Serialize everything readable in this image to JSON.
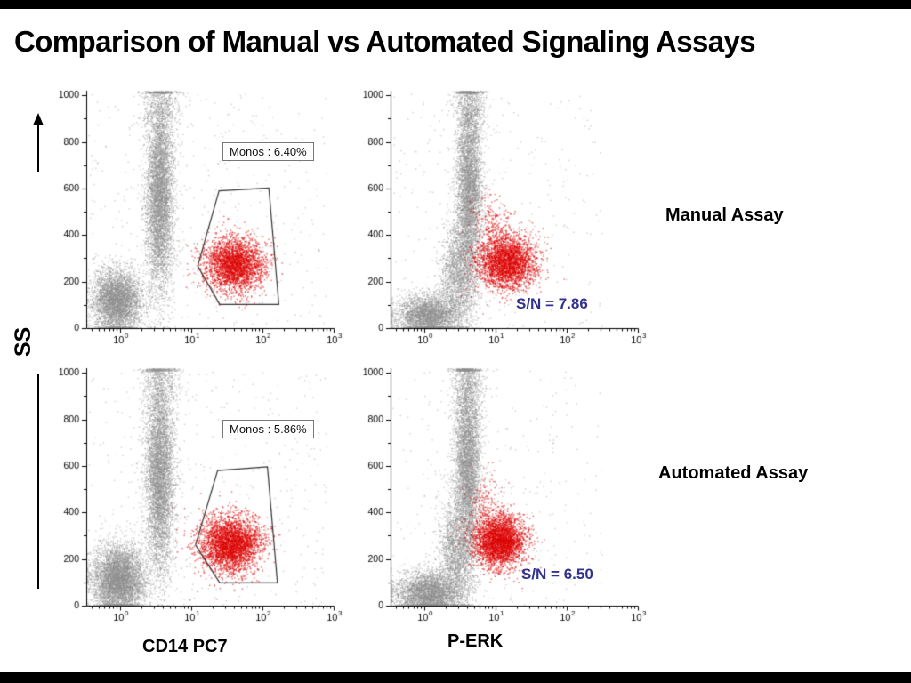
{
  "page": {
    "title": "Comparison of Manual vs Automated Signaling Assays",
    "background": "#ffffff",
    "frame_color": "#000000"
  },
  "labels": {
    "y_axis": "SS",
    "x_axis_left": "CD14 PC7",
    "x_axis_right": "P-ERK",
    "row_top": "Manual Assay",
    "row_bottom": "Automated Assay"
  },
  "colors": {
    "gray_population": "#8c8c8c",
    "red_population": "#dd0000",
    "sn_text": "#32328e",
    "gate_line": "#333333"
  },
  "chart_data": [
    {
      "name": "manual-cd14",
      "type": "scatter",
      "x_scale": "log",
      "x_axis": "CD14 PC7",
      "y_axis": "SS",
      "x_tick_exponents": [
        0,
        1,
        2,
        3
      ],
      "y_ticks": [
        0,
        200,
        400,
        600,
        800,
        1000
      ],
      "y_max": 1020,
      "log_range": [
        -0.475,
        3.0
      ],
      "gate": {
        "label": "Monos : 6.40%",
        "percent": 6.4,
        "polygon": [
          [
            1.09,
            267
          ],
          [
            1.39,
            590
          ],
          [
            2.09,
            602
          ],
          [
            2.23,
            102
          ],
          [
            1.4,
            102
          ]
        ]
      },
      "annotation": "",
      "populations": [
        {
          "name": "debris",
          "color": "gray",
          "n": 4200,
          "lx": -0.05,
          "lsd": 0.17,
          "y": 115,
          "ysd": 68
        },
        {
          "name": "main-band",
          "color": "gray",
          "n": 5200,
          "lx": 0.55,
          "lsd": 0.1,
          "y": 560,
          "ysd": 205
        },
        {
          "name": "band-top",
          "color": "gray",
          "n": 600,
          "lx": 0.56,
          "lsd": 0.13,
          "y": 960,
          "ysd": 80
        },
        {
          "name": "background",
          "color": "gray",
          "n": 420,
          "uniform": true,
          "lx0": -0.45,
          "lx1": 2.9,
          "y0": 0,
          "y1": 1010
        },
        {
          "name": "monocytes",
          "color": "red",
          "n": 2800,
          "lx": 1.6,
          "lsd": 0.21,
          "y": 272,
          "ysd": 58
        }
      ]
    },
    {
      "name": "manual-perk",
      "type": "scatter",
      "x_scale": "log",
      "x_axis": "P-ERK",
      "y_axis": "SS",
      "x_tick_exponents": [
        0,
        1,
        2,
        3
      ],
      "y_ticks": [
        0,
        200,
        400,
        600,
        800,
        1000
      ],
      "y_max": 1020,
      "log_range": [
        -0.475,
        3.0
      ],
      "gate": null,
      "annotation": "S/N = 7.86",
      "sn_value": 7.86,
      "populations": [
        {
          "name": "debris-comet",
          "color": "gray",
          "n": 3200,
          "lx": 0.05,
          "lsd": 0.22,
          "y": 55,
          "ysd": 45
        },
        {
          "name": "rise",
          "color": "gray",
          "n": 1700,
          "lx": 0.45,
          "lsd": 0.12,
          "y": 230,
          "ysd": 110
        },
        {
          "name": "main-band",
          "color": "gray",
          "n": 4800,
          "lx": 0.62,
          "lsd": 0.09,
          "y": 600,
          "ysd": 215
        },
        {
          "name": "band-top",
          "color": "gray",
          "n": 500,
          "lx": 0.62,
          "lsd": 0.12,
          "y": 970,
          "ysd": 70
        },
        {
          "name": "background",
          "color": "gray",
          "n": 300,
          "uniform": true,
          "lx0": -0.45,
          "lx1": 2.5,
          "y0": 0,
          "y1": 1010
        },
        {
          "name": "monocytes-perk",
          "color": "red",
          "n": 2900,
          "lx": 1.15,
          "lsd": 0.2,
          "y": 285,
          "ysd": 60
        },
        {
          "name": "red-spray",
          "color": "red",
          "n": 220,
          "lx": 0.92,
          "lsd": 0.13,
          "y": 440,
          "ysd": 75
        }
      ]
    },
    {
      "name": "automated-cd14",
      "type": "scatter",
      "x_scale": "log",
      "x_axis": "CD14 PC7",
      "y_axis": "SS",
      "x_tick_exponents": [
        0,
        1,
        2,
        3
      ],
      "y_ticks": [
        0,
        200,
        400,
        600,
        800,
        1000
      ],
      "y_max": 1020,
      "log_range": [
        -0.475,
        3.0
      ],
      "gate": {
        "label": "Monos : 5.86%",
        "percent": 5.86,
        "polygon": [
          [
            1.06,
            260
          ],
          [
            1.37,
            580
          ],
          [
            2.07,
            596
          ],
          [
            2.21,
            98
          ],
          [
            1.4,
            98
          ]
        ]
      },
      "annotation": "",
      "populations": [
        {
          "name": "debris",
          "color": "gray",
          "n": 5200,
          "lx": -0.03,
          "lsd": 0.18,
          "y": 112,
          "ysd": 72
        },
        {
          "name": "main-band",
          "color": "gray",
          "n": 5200,
          "lx": 0.55,
          "lsd": 0.1,
          "y": 555,
          "ysd": 205
        },
        {
          "name": "band-top",
          "color": "gray",
          "n": 600,
          "lx": 0.55,
          "lsd": 0.13,
          "y": 960,
          "ysd": 80
        },
        {
          "name": "background",
          "color": "gray",
          "n": 420,
          "uniform": true,
          "lx0": -0.45,
          "lx1": 2.9,
          "y0": 0,
          "y1": 1010
        },
        {
          "name": "monocytes",
          "color": "red",
          "n": 3300,
          "lx": 1.55,
          "lsd": 0.22,
          "y": 268,
          "ysd": 60
        }
      ]
    },
    {
      "name": "automated-perk",
      "type": "scatter",
      "x_scale": "log",
      "x_axis": "P-ERK",
      "y_axis": "SS",
      "x_tick_exponents": [
        0,
        1,
        2,
        3
      ],
      "y_ticks": [
        0,
        200,
        400,
        600,
        800,
        1000
      ],
      "y_max": 1020,
      "log_range": [
        -0.475,
        3.0
      ],
      "gate": null,
      "annotation": "S/N = 6.50",
      "sn_value": 6.5,
      "populations": [
        {
          "name": "debris-comet",
          "color": "gray",
          "n": 3500,
          "lx": 0.05,
          "lsd": 0.22,
          "y": 55,
          "ysd": 45
        },
        {
          "name": "rise",
          "color": "gray",
          "n": 1800,
          "lx": 0.43,
          "lsd": 0.12,
          "y": 225,
          "ysd": 110
        },
        {
          "name": "main-band",
          "color": "gray",
          "n": 4800,
          "lx": 0.6,
          "lsd": 0.09,
          "y": 600,
          "ysd": 215
        },
        {
          "name": "band-top",
          "color": "gray",
          "n": 500,
          "lx": 0.6,
          "lsd": 0.12,
          "y": 970,
          "ysd": 70
        },
        {
          "name": "background",
          "color": "gray",
          "n": 300,
          "uniform": true,
          "lx0": -0.45,
          "lx1": 2.5,
          "y0": 0,
          "y1": 1010
        },
        {
          "name": "monocytes-perk",
          "color": "red",
          "n": 3200,
          "lx": 1.05,
          "lsd": 0.18,
          "y": 278,
          "ysd": 55
        },
        {
          "name": "red-spray",
          "color": "red",
          "n": 180,
          "lx": 0.85,
          "lsd": 0.12,
          "y": 430,
          "ysd": 70
        }
      ]
    }
  ]
}
